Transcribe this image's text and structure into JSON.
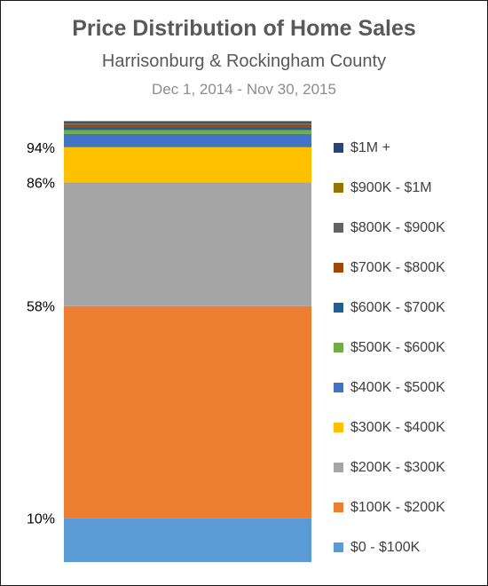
{
  "chart_data": {
    "type": "bar",
    "stacked": true,
    "title": "Price Distribution of Home Sales",
    "subtitle": "Harrisonburg & Rockingham County",
    "date_range": "Dec 1, 2014 - Nov 30, 2015",
    "y_range": [
      0,
      100
    ],
    "cumulative_labels": [
      {
        "value": 10,
        "text": "10%"
      },
      {
        "value": 58,
        "text": "58%"
      },
      {
        "value": 86,
        "text": "86%"
      },
      {
        "value": 94,
        "text": "94%"
      }
    ],
    "series": [
      {
        "name": "$0 - $100K",
        "value": 10.0,
        "color": "#5b9bd5"
      },
      {
        "name": "$100K - $200K",
        "value": 48.0,
        "color": "#ed7d31"
      },
      {
        "name": "$200K - $300K",
        "value": 28.0,
        "color": "#a5a5a5"
      },
      {
        "name": "$300K - $400K",
        "value": 8.0,
        "color": "#ffc000"
      },
      {
        "name": "$400K - $500K",
        "value": 3.0,
        "color": "#4472c4"
      },
      {
        "name": "$500K - $600K",
        "value": 0.9,
        "color": "#70ad47"
      },
      {
        "name": "$600K - $700K",
        "value": 0.6,
        "color": "#255e91"
      },
      {
        "name": "$700K - $800K",
        "value": 0.5,
        "color": "#9e480e"
      },
      {
        "name": "$800K - $900K",
        "value": 0.3,
        "color": "#636363"
      },
      {
        "name": "$900K - $1M",
        "value": 0.2,
        "color": "#997300"
      },
      {
        "name": "$1M +",
        "value": 0.4,
        "color": "#264478"
      }
    ]
  }
}
